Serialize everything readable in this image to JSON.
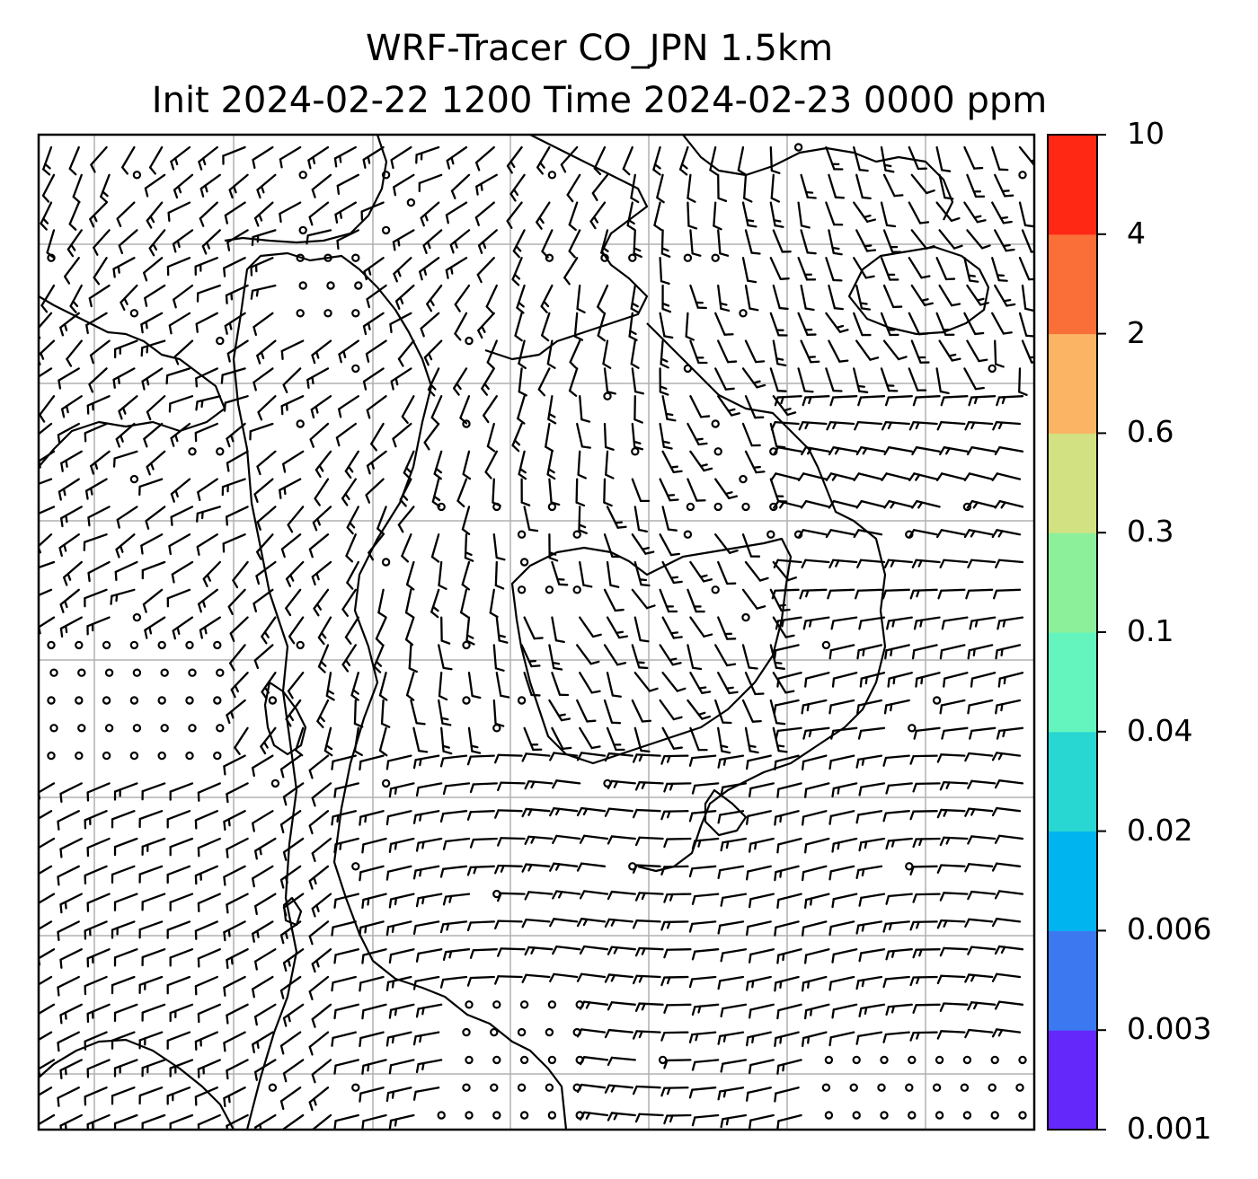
{
  "title": {
    "line1": "WRF-Tracer CO_JPN 1.5km",
    "line2": "Init 2024-02-22 1200 Time 2024-02-23 0000 ppm"
  },
  "colorbar": {
    "unit": "ppm",
    "levels": [
      "0.001",
      "0.003",
      "0.006",
      "0.02",
      "0.04",
      "0.1",
      "0.3",
      "0.6",
      "2",
      "4",
      "10"
    ],
    "colors": [
      "#6428fa",
      "#3c78f0",
      "#00b4f0",
      "#28d7d2",
      "#64f5be",
      "#8cf09a",
      "#d2e182",
      "#fab464",
      "#fa6e37",
      "#ff2814"
    ]
  },
  "map": {
    "background": "#ffffff",
    "gridline_color": "#b0b0b0",
    "coastline_color": "#000000",
    "barb_color": "#000000",
    "field": "wind barbs with coastlines, calm marked by circles"
  }
}
